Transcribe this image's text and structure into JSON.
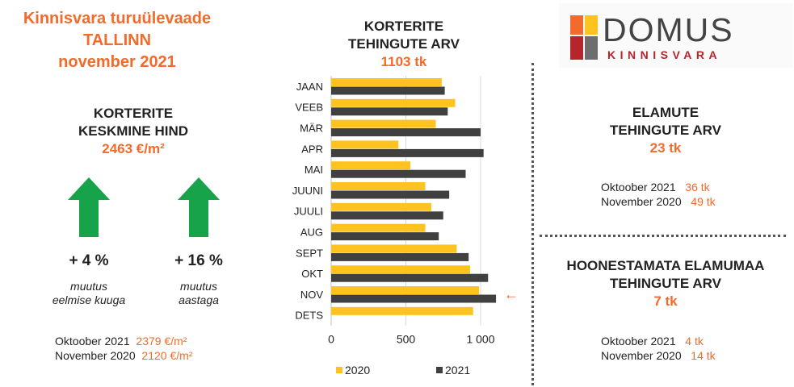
{
  "header": {
    "line1": "Kinnisvara turuülevaade",
    "line2": "TALLINN",
    "line3": "november 2021"
  },
  "apartment_price": {
    "heading1": "KORTERITE",
    "heading2": "KESKMINE HIND",
    "value": "2463 €/m²",
    "changes": [
      {
        "pct": "+ 4 %",
        "note1": "muutus",
        "note2": "eelmise kuuga",
        "arrow": "up-arrow-icon"
      },
      {
        "pct": "+ 16 %",
        "note1": "muutus",
        "note2": "aastaga",
        "arrow": "up-arrow-icon"
      }
    ],
    "comparisons": [
      {
        "label": "Oktoober  2021",
        "value": "2379 €/m²"
      },
      {
        "label": "November  2020",
        "value": "2120 €/m²"
      }
    ]
  },
  "chart_data": {
    "type": "bar",
    "orientation": "horizontal",
    "title_line1": "KORTERITE",
    "title_line2": "TEHINGUTE ARV",
    "total": "1103 tk",
    "categories": [
      "JAAN",
      "VEEB",
      "MÄR",
      "APR",
      "MAI",
      "JUUNI",
      "JUULI",
      "AUG",
      "SEPT",
      "OKT",
      "NOV",
      "DETS"
    ],
    "series": [
      {
        "name": "2020",
        "color": "#FFC31F",
        "values": [
          740,
          830,
          700,
          450,
          530,
          630,
          670,
          630,
          840,
          930,
          990,
          950
        ]
      },
      {
        "name": "2021",
        "color": "#404040",
        "values": [
          760,
          780,
          1000,
          1020,
          900,
          790,
          750,
          720,
          920,
          1050,
          1103,
          null
        ]
      }
    ],
    "xlim": [
      0,
      1200
    ],
    "xticks": [
      0,
      500,
      1000
    ],
    "xtick_labels": [
      "0",
      "500",
      "1 000"
    ],
    "grid": "vertical",
    "legend_position": "bottom",
    "highlight": {
      "category": "NOV",
      "marker": "←",
      "color": "#F26B2A"
    }
  },
  "logo": {
    "word": "DOMUS",
    "sub": "KINNISVARA",
    "colors": [
      "#F26B2A",
      "#FFC31F",
      "#B5252B",
      "#6E6E6E"
    ]
  },
  "houses": {
    "heading1": "ELAMUTE",
    "heading2": "TEHINGUTE ARV",
    "value": "23 tk",
    "comparisons": [
      {
        "label": "Oktoober  2021",
        "value": "36 tk"
      },
      {
        "label": "November  2020",
        "value": "49 tk"
      }
    ]
  },
  "land": {
    "heading1": "HOONESTAMATA ELAMUMAA",
    "heading2": "TEHINGUTE ARV",
    "value": "7 tk",
    "comparisons": [
      {
        "label": "Oktoober  2021",
        "value": "4 tk"
      },
      {
        "label": "November  2020",
        "value": "14 tk"
      }
    ]
  }
}
